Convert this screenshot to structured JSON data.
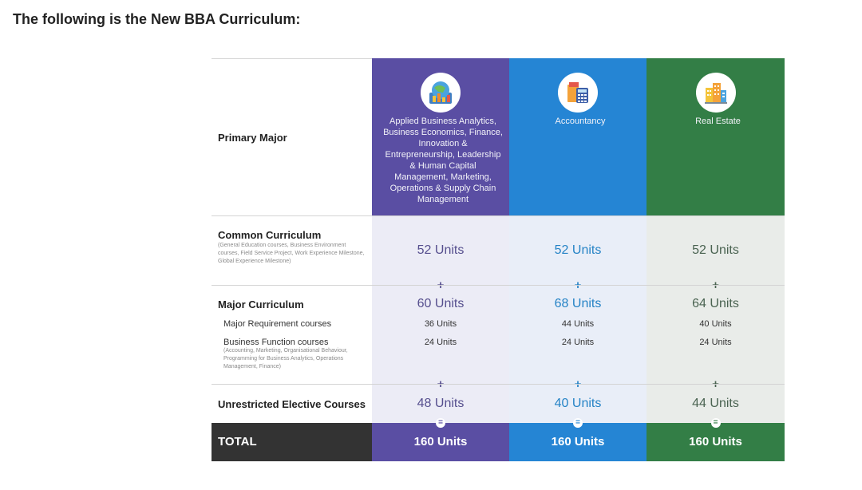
{
  "heading": "The following is the New BBA Curriculum:",
  "rows": {
    "primary_major": "Primary Major",
    "common_curriculum": "Common Curriculum",
    "common_note": "(General Education courses, Business Environment courses, Field Service Project, Work Experience Milestone, Global Experience Milestone)",
    "major_curriculum": "Major Curriculum",
    "major_requirement": "Major Requirement courses",
    "business_function": "Business Function courses",
    "business_function_note": "(Accounting, Marketing, Organisational Behaviour, Programming for Business Analytics, Operations Management, Finance)",
    "unrestricted_elective": "Unrestricted Elective Courses",
    "total": "TOTAL"
  },
  "operators": {
    "plus": "+",
    "equals": "="
  },
  "columns": [
    {
      "icon": "analytics-chart-icon",
      "color": "#5a4ea3",
      "header": "Applied Business Analytics, Business Economics, Finance, Innovation & Entrepreneurship, Leadership & Human Capital Management, Marketing, Operations & Supply Chain Management",
      "common": "52 Units",
      "major": "60 Units",
      "major_requirement": "36 Units",
      "business_function": "24 Units",
      "elective": "48 Units",
      "total": "160 Units"
    },
    {
      "icon": "calculator-icon",
      "color": "#2585d4",
      "header": "Accountancy",
      "common": "52 Units",
      "major": "68 Units",
      "major_requirement": "44 Units",
      "business_function": "24 Units",
      "elective": "40 Units",
      "total": "160 Units"
    },
    {
      "icon": "buildings-icon",
      "color": "#337e46",
      "header": "Real Estate",
      "common": "52 Units",
      "major": "64 Units",
      "major_requirement": "40 Units",
      "business_function": "24 Units",
      "elective": "44 Units",
      "total": "160 Units"
    }
  ]
}
